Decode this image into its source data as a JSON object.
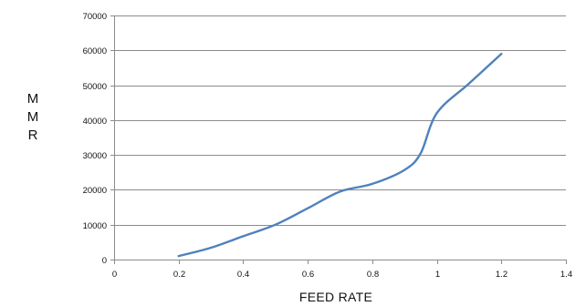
{
  "chart_data": {
    "type": "line",
    "title": "",
    "xlabel": "FEED RATE",
    "ylabel": "MMR",
    "ylabel_lines": [
      "M",
      "M",
      "R"
    ],
    "xlim": [
      0,
      1.4
    ],
    "ylim": [
      0,
      70000
    ],
    "x_ticks": [
      0,
      0.2,
      0.4,
      0.6,
      0.8,
      1,
      1.2,
      1.4
    ],
    "x_tick_labels": [
      "0",
      "0.2",
      "0.4",
      "0.6",
      "0.8",
      "1",
      "1.2",
      "1.4"
    ],
    "y_ticks": [
      0,
      10000,
      20000,
      30000,
      40000,
      50000,
      60000,
      70000
    ],
    "y_tick_labels": [
      "0",
      "10000",
      "20000",
      "30000",
      "40000",
      "50000",
      "60000",
      "70000"
    ],
    "grid": "horizontal",
    "legend": "none",
    "series": [
      {
        "color": "#4f81bd",
        "smooth": true,
        "x": [
          0.2,
          0.3,
          0.4,
          0.5,
          0.6,
          0.7,
          0.8,
          0.9,
          0.95,
          1.0,
          1.1,
          1.2
        ],
        "y": [
          1000,
          3400,
          6700,
          10000,
          14700,
          19500,
          21700,
          25700,
          30500,
          42000,
          50500,
          59000
        ]
      }
    ],
    "colors": {
      "gridline": "#8c8c8c",
      "axis": "#8c8c8c"
    }
  }
}
